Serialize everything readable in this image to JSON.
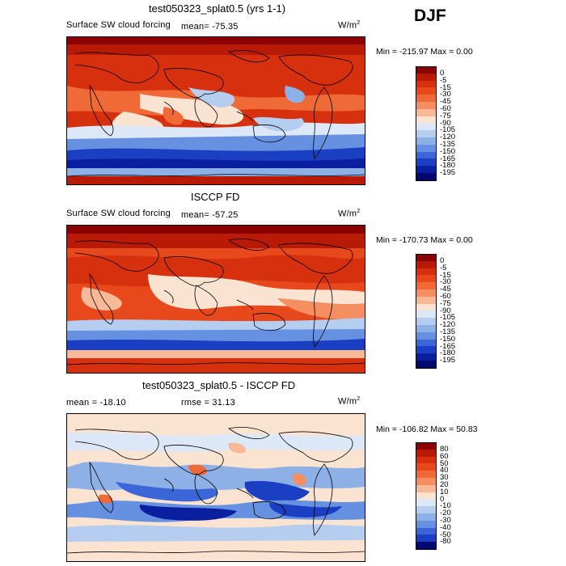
{
  "season": "DJF",
  "panels": [
    {
      "title": "test050323_splat0.5 (yrs 1-1)",
      "left_label": "Surface SW cloud forcing",
      "mean_label": "mean= -75.35",
      "units_label": "W/m",
      "units_exp": "2",
      "min_max": "Min = -215.97 Max =    0.00"
    },
    {
      "title": "ISCCP FD",
      "left_label": "Surface SW cloud forcing",
      "mean_label": "mean= -57.25",
      "units_label": "W/m",
      "units_exp": "2",
      "min_max": "Min = -170.73 Max =    0.00"
    },
    {
      "title": "test050323_splat0.5 - ISCCP FD",
      "left_label": "mean = -18.10",
      "rmse_label": "rmse =  31.13",
      "units_label": "W/m",
      "units_exp": "2",
      "min_max": "Min = -106.82 Max =  50.83"
    }
  ],
  "colorbars": {
    "abs": {
      "labels": [
        "0",
        "-5",
        "-15",
        "-30",
        "-45",
        "-60",
        "-75",
        "-90",
        "-105",
        "-120",
        "-135",
        "-150",
        "-165",
        "-180",
        "-195"
      ],
      "colors": [
        "#8b0000",
        "#b81a05",
        "#d6300e",
        "#e8491c",
        "#f06a38",
        "#f58e60",
        "#f9b896",
        "#fbe3d2",
        "#dce8f7",
        "#b5cef0",
        "#8db0e6",
        "#6690e0",
        "#3b66d8",
        "#1a3fc2",
        "#0a1fa0",
        "#000a6e"
      ]
    },
    "diff": {
      "labels": [
        "80",
        "60",
        "50",
        "40",
        "30",
        "20",
        "10",
        "0",
        "-10",
        "-20",
        "-30",
        "-40",
        "-50",
        "-80"
      ],
      "colors": [
        "#8b0000",
        "#b81a05",
        "#d6300e",
        "#e8491c",
        "#f06a38",
        "#f58e60",
        "#f9b896",
        "#fbe3d2",
        "#dce8f7",
        "#b5cef0",
        "#8db0e6",
        "#6690e0",
        "#3b66d8",
        "#1a3fc2",
        "#000a6e"
      ]
    }
  },
  "chart_data": [
    {
      "type": "heatmap",
      "title": "test050323_splat0.5 (yrs 1-1)",
      "variable": "Surface SW cloud forcing",
      "units": "W/m^2",
      "season": "DJF",
      "mean": -75.35,
      "min": -215.97,
      "max": 0.0,
      "levels": [
        0,
        -5,
        -15,
        -30,
        -45,
        -60,
        -75,
        -90,
        -105,
        -120,
        -135,
        -150,
        -165,
        -180,
        -195
      ]
    },
    {
      "type": "heatmap",
      "title": "ISCCP FD",
      "variable": "Surface SW cloud forcing",
      "units": "W/m^2",
      "season": "DJF",
      "mean": -57.25,
      "min": -170.73,
      "max": 0.0,
      "levels": [
        0,
        -5,
        -15,
        -30,
        -45,
        -60,
        -75,
        -90,
        -105,
        -120,
        -135,
        -150,
        -165,
        -180,
        -195
      ]
    },
    {
      "type": "heatmap",
      "title": "test050323_splat0.5 - ISCCP FD",
      "units": "W/m^2",
      "season": "DJF",
      "mean": -18.1,
      "rmse": 31.13,
      "min": -106.82,
      "max": 50.83,
      "levels": [
        80,
        60,
        50,
        40,
        30,
        20,
        10,
        0,
        -10,
        -20,
        -30,
        -40,
        -50,
        -80
      ]
    }
  ]
}
